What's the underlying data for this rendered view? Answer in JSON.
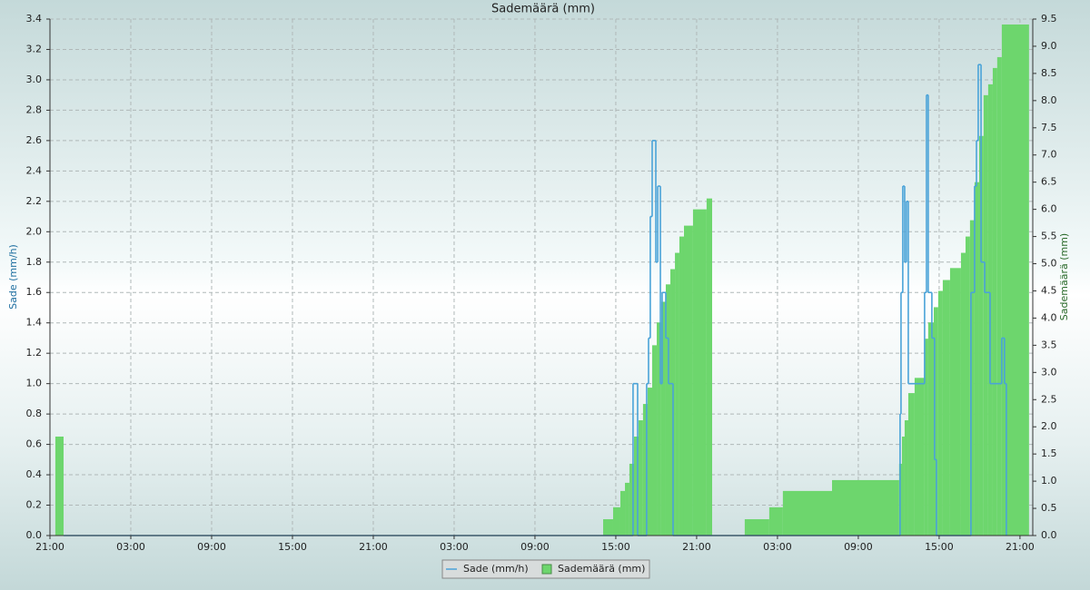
{
  "chart_data": {
    "type": "combo",
    "title": "Sademäärä (mm)",
    "ylabel": "Sade (mm/h)",
    "y2label": "Sademäärä (mm)",
    "xlim": [
      0,
      72.95
    ],
    "xticks": [
      {
        "value": 0,
        "label": "21:00"
      },
      {
        "value": 6,
        "label": "03:00"
      },
      {
        "value": 12,
        "label": "09:00"
      },
      {
        "value": 18,
        "label": "15:00"
      },
      {
        "value": 24,
        "label": "21:00"
      },
      {
        "value": 30,
        "label": "03:00"
      },
      {
        "value": 36,
        "label": "09:00"
      },
      {
        "value": 42,
        "label": "15:00"
      },
      {
        "value": 48,
        "label": "21:00"
      },
      {
        "value": 54,
        "label": "03:00"
      },
      {
        "value": 60,
        "label": "09:00"
      },
      {
        "value": 66,
        "label": "15:00"
      },
      {
        "value": 72,
        "label": "21:00"
      }
    ],
    "ylim": [
      0,
      3.4
    ],
    "yticks": [
      {
        "value": 0,
        "label": "0.0"
      },
      0.2,
      0.4,
      0.6,
      0.8,
      {
        "value": 1,
        "label": "1.0"
      },
      1.2,
      1.4,
      1.6,
      1.8,
      {
        "value": 2,
        "label": "2.0"
      },
      2.2,
      2.4,
      2.6,
      2.8,
      {
        "value": 3,
        "label": "3.0"
      },
      3.2,
      3.4
    ],
    "y2lim": [
      0,
      9.5
    ],
    "y2ticks": [
      {
        "value": 0,
        "label": "0.0"
      },
      0.5,
      {
        "value": 1,
        "label": "1.0"
      },
      1.5,
      {
        "value": 2,
        "label": "2.0"
      },
      2.5,
      {
        "value": 3,
        "label": "3.0"
      },
      3.5,
      {
        "value": 4,
        "label": "4.0"
      },
      4.5,
      {
        "value": 5,
        "label": "5.0"
      },
      5.5,
      {
        "value": 6,
        "label": "6.0"
      },
      6.5,
      {
        "value": 7,
        "label": "7.0"
      },
      7.5,
      {
        "value": 8,
        "label": "8.0"
      },
      8.5,
      {
        "value": 9,
        "label": "9.0"
      },
      9.5
    ],
    "grid": true,
    "legend": "bottom",
    "series": [
      {
        "name": "Sade (mm/h)",
        "type": "step",
        "color": "#4aa3d8",
        "x": [
          1.01,
          43.28,
          43.62,
          44.29,
          44.43,
          44.56,
          44.7,
          44.97,
          45.11,
          45.31,
          45.44,
          45.71,
          45.91,
          46.25,
          63.1,
          63.17,
          63.3,
          63.44,
          63.57,
          63.71,
          64.92,
          65.06,
          65.19,
          65.46,
          65.66,
          65.8,
          68.36,
          68.63,
          68.77,
          68.9,
          69.11,
          69.38,
          69.78,
          70.65,
          70.85,
          70.99
        ],
        "values": [
          0,
          1.0,
          0,
          1.0,
          1.3,
          2.1,
          2.6,
          1.8,
          2.3,
          1.0,
          1.6,
          1.3,
          1.0,
          0,
          0.8,
          1.6,
          2.3,
          1.8,
          2.2,
          1.0,
          1.6,
          2.9,
          1.6,
          1.3,
          0.5,
          0,
          1.6,
          2.3,
          2.6,
          3.1,
          1.8,
          1.6,
          1.0,
          1.3,
          1.0,
          0
        ]
      },
      {
        "name": "Sademäärä (mm)",
        "type": "bar",
        "axis": "y2",
        "color": "#6dd66d",
        "x": [
          0.4,
          1.01,
          41.06,
          41.8,
          42.34,
          42.68,
          43.01,
          43.35,
          43.69,
          44.02,
          44.36,
          44.7,
          45.04,
          45.37,
          45.71,
          46.05,
          46.39,
          46.72,
          47.06,
          47.73,
          48.74,
          49.15,
          51.57,
          53.39,
          54.4,
          58.05,
          63.03,
          63.24,
          63.44,
          63.71,
          64.18,
          64.92,
          65.19,
          65.6,
          65.93,
          66.27,
          66.81,
          67.62,
          67.96,
          68.29,
          68.63,
          68.97,
          69.3,
          69.64,
          69.98,
          70.31,
          70.65,
          72.67
        ],
        "values": [
          1.82,
          null,
          0.3,
          0.52,
          0.82,
          0.97,
          1.32,
          1.82,
          2.12,
          2.42,
          2.72,
          3.5,
          3.92,
          4.3,
          4.62,
          4.9,
          5.2,
          5.5,
          5.7,
          6.0,
          6.2,
          null,
          0.3,
          0.52,
          0.82,
          1.02,
          1.32,
          1.82,
          2.12,
          2.62,
          2.9,
          3.62,
          3.92,
          4.2,
          4.5,
          4.7,
          4.92,
          5.2,
          5.5,
          5.8,
          6.5,
          7.35,
          8.1,
          8.3,
          8.6,
          8.8,
          9.4,
          null
        ]
      }
    ]
  }
}
